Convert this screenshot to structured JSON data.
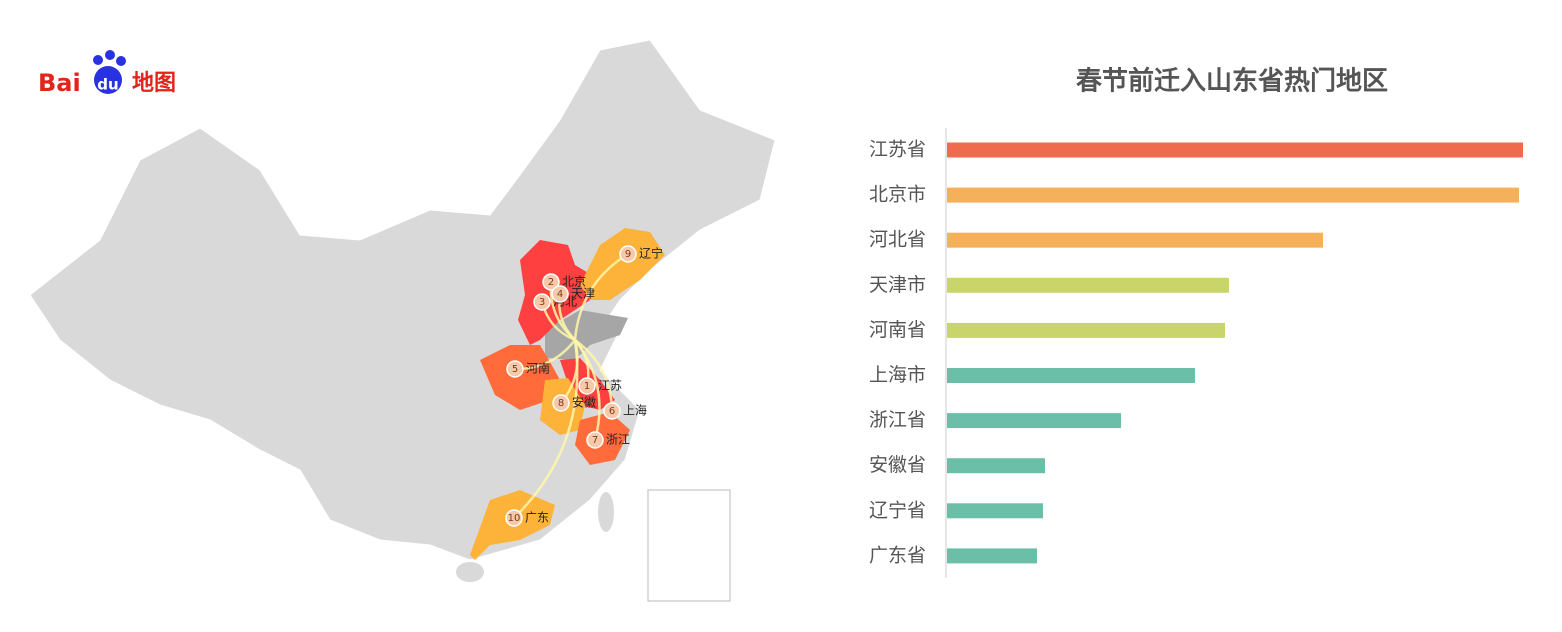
{
  "logo": {
    "brand": "Bai",
    "brand_du": "du",
    "product": "地图"
  },
  "map": {
    "labels": [
      {
        "rank": 1,
        "name": "江苏"
      },
      {
        "rank": 2,
        "name": "北京"
      },
      {
        "rank": 3,
        "name": "河北"
      },
      {
        "rank": 4,
        "name": "天津"
      },
      {
        "rank": 5,
        "name": "河南"
      },
      {
        "rank": 6,
        "name": "上海"
      },
      {
        "rank": 7,
        "name": "浙江"
      },
      {
        "rank": 8,
        "name": "安徽"
      },
      {
        "rank": 9,
        "name": "辽宁"
      },
      {
        "rank": 10,
        "name": "广东"
      }
    ]
  },
  "chart_data": {
    "type": "bar",
    "orientation": "horizontal",
    "title": "春节前迁入山东省热门地区",
    "categories": [
      "江苏省",
      "北京市",
      "河北省",
      "天津市",
      "河南省",
      "上海市",
      "浙江省",
      "安徽省",
      "辽宁省",
      "广东省"
    ],
    "values": [
      576,
      572,
      376,
      282,
      278,
      248,
      174,
      98,
      96,
      90
    ],
    "colors": [
      "#ee6b4d",
      "#f5b05a",
      "#f5b05a",
      "#c9d46b",
      "#c9d46b",
      "#6bbfa8",
      "#6bbfa8",
      "#6bbfa8",
      "#6bbfa8",
      "#6bbfa8"
    ],
    "xlim": [
      0,
      576
    ]
  }
}
